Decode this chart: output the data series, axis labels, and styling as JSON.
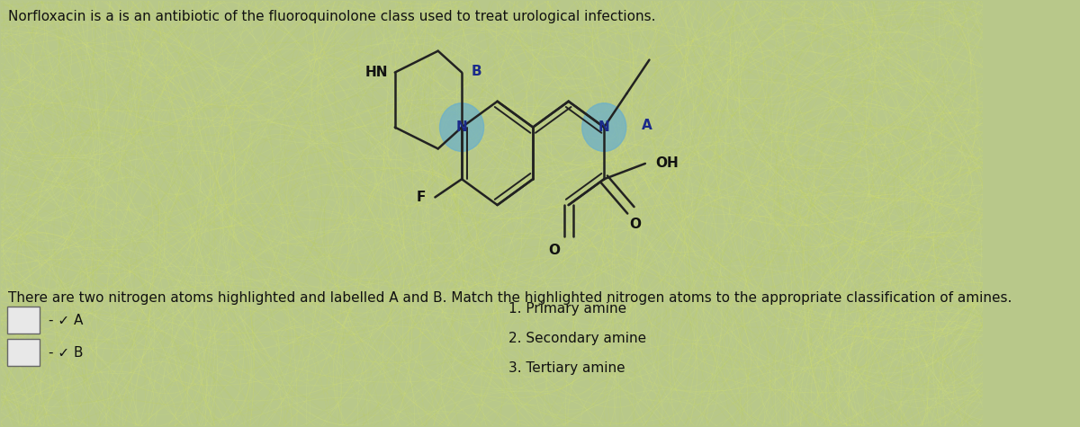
{
  "title_text": "Norfloxacin is a is an antibiotic of the fluoroquinolone class used to treat urological infections.",
  "background_color": "#b8c88a",
  "highlight_color_nb": "#6ab0cc",
  "highlight_color_na": "#6ab0cc",
  "bond_color": "#222222",
  "label_color": "#111111",
  "blue_label_color": "#1a2a8a",
  "title_fontsize": 11,
  "question_fontsize": 11,
  "answer_fontsize": 11,
  "question_text": "There are two nitrogen atoms highlighted and labelled A and B. Match the highlighted nitrogen atoms to the appropriate classification of amines.",
  "answer_items": [
    "1. Primary amine",
    "2. Secondary amine",
    "3. Tertiary amine"
  ],
  "dropdown_A": "- ✓ A",
  "dropdown_B": "- ✓ B"
}
